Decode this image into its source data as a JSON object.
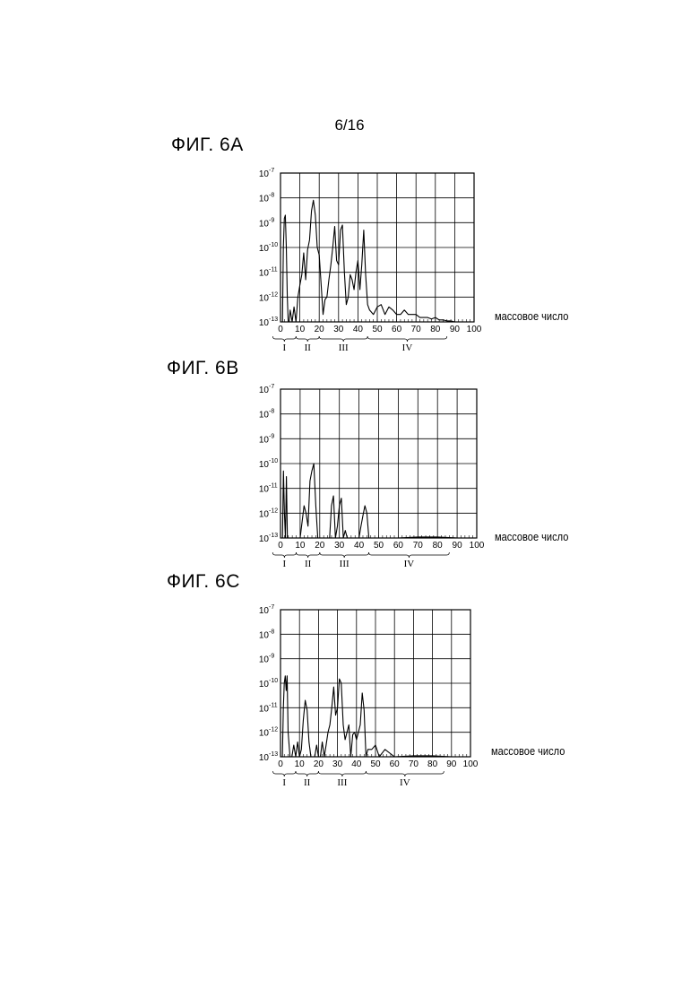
{
  "page_number": "6/16",
  "chart_data": [
    {
      "id": "6A",
      "type": "line",
      "title": "ФИГ. 6A",
      "xlabel": "массовое число",
      "ylabel": "",
      "xlim": [
        0,
        100
      ],
      "ylim": [
        1e-13,
        1e-07
      ],
      "yscale": "log",
      "grid": true,
      "x_ticks": [
        "0",
        "10",
        "20",
        "30",
        "40",
        "50",
        "60",
        "70",
        "80",
        "90",
        "100"
      ],
      "y_ticks": [
        {
          "base": "10",
          "exp": "-7"
        },
        {
          "base": "10",
          "exp": "-8"
        },
        {
          "base": "10",
          "exp": "-9"
        },
        {
          "base": "10",
          "exp": "-10"
        },
        {
          "base": "10",
          "exp": "-11"
        },
        {
          "base": "10",
          "exp": "-12"
        },
        {
          "base": "10",
          "exp": "-13"
        }
      ],
      "regions": [
        {
          "label": "I",
          "from": -4,
          "to": 8
        },
        {
          "label": "II",
          "from": 8,
          "to": 20
        },
        {
          "label": "III",
          "from": 20,
          "to": 45
        },
        {
          "label": "IV",
          "from": 45,
          "to": 86
        }
      ],
      "series": [
        {
          "x": [
            1,
            1.5,
            2,
            2.5,
            3,
            3.5,
            4,
            4.5,
            5,
            6,
            7,
            8,
            9,
            10,
            11,
            12,
            13,
            14,
            15,
            16,
            17,
            18,
            19,
            20,
            21,
            22,
            23,
            24,
            25,
            26,
            27,
            28,
            29,
            30,
            31,
            32,
            33,
            34,
            35,
            36,
            37,
            38,
            39,
            40,
            41,
            42,
            43,
            44,
            45,
            46,
            48,
            50,
            52,
            54,
            56,
            58,
            60,
            62,
            64,
            66,
            68,
            70,
            72,
            74,
            76,
            78,
            80,
            82,
            84,
            86,
            88,
            90
          ],
          "y": [
            1e-13,
            1e-10,
            1.5e-09,
            2e-09,
            1e-10,
            1e-12,
            1e-13,
            1e-13,
            3e-13,
            1e-13,
            4e-13,
            1e-13,
            1e-12,
            3e-12,
            8e-12,
            6e-11,
            5e-12,
            8e-11,
            2e-10,
            3e-09,
            8e-09,
            2e-09,
            1e-10,
            5e-11,
            3e-12,
            2e-13,
            8e-13,
            1e-12,
            5e-12,
            2e-11,
            1e-10,
            7e-10,
            3e-11,
            2e-11,
            5e-10,
            8e-10,
            1e-11,
            5e-13,
            1e-12,
            8e-12,
            5e-12,
            2e-12,
            1e-11,
            3e-11,
            2e-12,
            2e-11,
            5e-10,
            8e-12,
            5e-13,
            3e-13,
            2e-13,
            4e-13,
            5e-13,
            2e-13,
            4e-13,
            3e-13,
            2e-13,
            2e-13,
            3e-13,
            2e-13,
            2e-13,
            2e-13,
            1.5e-13,
            1.5e-13,
            1.5e-13,
            1.3e-13,
            1.5e-13,
            1.2e-13,
            1.2e-13,
            1.1e-13,
            1.1e-13,
            1e-13
          ]
        }
      ]
    },
    {
      "id": "6B",
      "type": "line",
      "title": "ФИГ. 6B",
      "xlabel": "массовое число",
      "ylabel": "",
      "xlim": [
        0,
        100
      ],
      "ylim": [
        1e-13,
        1e-07
      ],
      "yscale": "log",
      "grid": true,
      "x_ticks": [
        "0",
        "10",
        "20",
        "30",
        "40",
        "50",
        "60",
        "70",
        "80",
        "90",
        "100"
      ],
      "y_ticks": [
        {
          "base": "10",
          "exp": "-7"
        },
        {
          "base": "10",
          "exp": "-8"
        },
        {
          "base": "10",
          "exp": "-9"
        },
        {
          "base": "10",
          "exp": "-10"
        },
        {
          "base": "10",
          "exp": "-11"
        },
        {
          "base": "10",
          "exp": "-12"
        },
        {
          "base": "10",
          "exp": "-13"
        }
      ],
      "regions": [
        {
          "label": "I",
          "from": -4,
          "to": 8
        },
        {
          "label": "II",
          "from": 8,
          "to": 20
        },
        {
          "label": "III",
          "from": 20,
          "to": 45
        },
        {
          "label": "IV",
          "from": 45,
          "to": 86
        }
      ],
      "series": [
        {
          "x": [
            1,
            1.5,
            2,
            2.5,
            3,
            3.5,
            4,
            5,
            10,
            12,
            13,
            14,
            15,
            16,
            17,
            18,
            19,
            20,
            22,
            25,
            26,
            27,
            28,
            29,
            30,
            31,
            32,
            33,
            34,
            35,
            40,
            41,
            42,
            43,
            44,
            45,
            50,
            60,
            70,
            80,
            90
          ],
          "y": [
            1e-13,
            5e-11,
            1e-12,
            1e-13,
            3e-11,
            1e-13,
            1e-13,
            1e-13,
            1e-13,
            2e-12,
            1e-12,
            3e-13,
            2e-11,
            5e-11,
            1e-10,
            2e-12,
            1e-13,
            1e-13,
            1e-13,
            1e-13,
            2e-12,
            5e-12,
            1e-13,
            3e-13,
            2e-12,
            4e-12,
            1e-13,
            2e-13,
            1e-13,
            1e-13,
            1e-13,
            3e-13,
            8e-13,
            2e-12,
            1e-12,
            1e-13,
            1e-13,
            1e-13,
            1.1e-13,
            1.1e-13,
            1e-13
          ]
        }
      ]
    },
    {
      "id": "6C",
      "type": "line",
      "title": "ФИГ. 6C",
      "xlabel": "массовое число",
      "ylabel": "",
      "xlim": [
        0,
        100
      ],
      "ylim": [
        1e-13,
        1e-07
      ],
      "yscale": "log",
      "grid": true,
      "x_ticks": [
        "0",
        "10",
        "20",
        "30",
        "40",
        "50",
        "60",
        "70",
        "80",
        "90",
        "100"
      ],
      "y_ticks": [
        {
          "base": "10",
          "exp": "-7"
        },
        {
          "base": "10",
          "exp": "-8"
        },
        {
          "base": "10",
          "exp": "-9"
        },
        {
          "base": "10",
          "exp": "-10"
        },
        {
          "base": "10",
          "exp": "-11"
        },
        {
          "base": "10",
          "exp": "-12"
        },
        {
          "base": "10",
          "exp": "-13"
        }
      ],
      "regions": [
        {
          "label": "I",
          "from": -4,
          "to": 8
        },
        {
          "label": "II",
          "from": 8,
          "to": 20
        },
        {
          "label": "III",
          "from": 20,
          "to": 45
        },
        {
          "label": "IV",
          "from": 45,
          "to": 86
        }
      ],
      "series": [
        {
          "x": [
            1,
            1.5,
            2,
            2.5,
            3,
            3.5,
            4,
            5,
            6,
            7,
            8,
            9,
            10,
            11,
            12,
            13,
            14,
            15,
            16,
            17,
            18,
            19,
            20,
            21,
            22,
            23,
            24,
            25,
            26,
            27,
            28,
            29,
            30,
            31,
            32,
            33,
            34,
            35,
            36,
            37,
            38,
            39,
            40,
            41,
            42,
            43,
            44,
            45,
            46,
            48,
            50,
            52,
            55,
            60,
            70,
            80,
            90
          ],
          "y": [
            1e-13,
            1e-11,
            1e-10,
            2e-10,
            5e-11,
            2e-10,
            1e-12,
            1e-13,
            1e-13,
            3e-13,
            1e-13,
            4e-13,
            1e-13,
            2e-13,
            3e-12,
            2e-11,
            8e-12,
            4e-13,
            1e-13,
            1e-13,
            1e-13,
            3e-13,
            1e-13,
            1e-13,
            4e-13,
            1e-13,
            3e-13,
            1e-12,
            2e-12,
            1e-11,
            7e-11,
            5e-12,
            1e-11,
            1.5e-10,
            1e-10,
            2e-12,
            5e-13,
            1e-12,
            2e-12,
            1e-13,
            8e-13,
            1e-12,
            5e-13,
            1e-12,
            2e-12,
            4e-11,
            8e-12,
            1e-13,
            2e-13,
            2e-13,
            3e-13,
            1e-13,
            2e-13,
            1e-13,
            1.1e-13,
            1.1e-13,
            1e-13
          ]
        }
      ]
    }
  ]
}
